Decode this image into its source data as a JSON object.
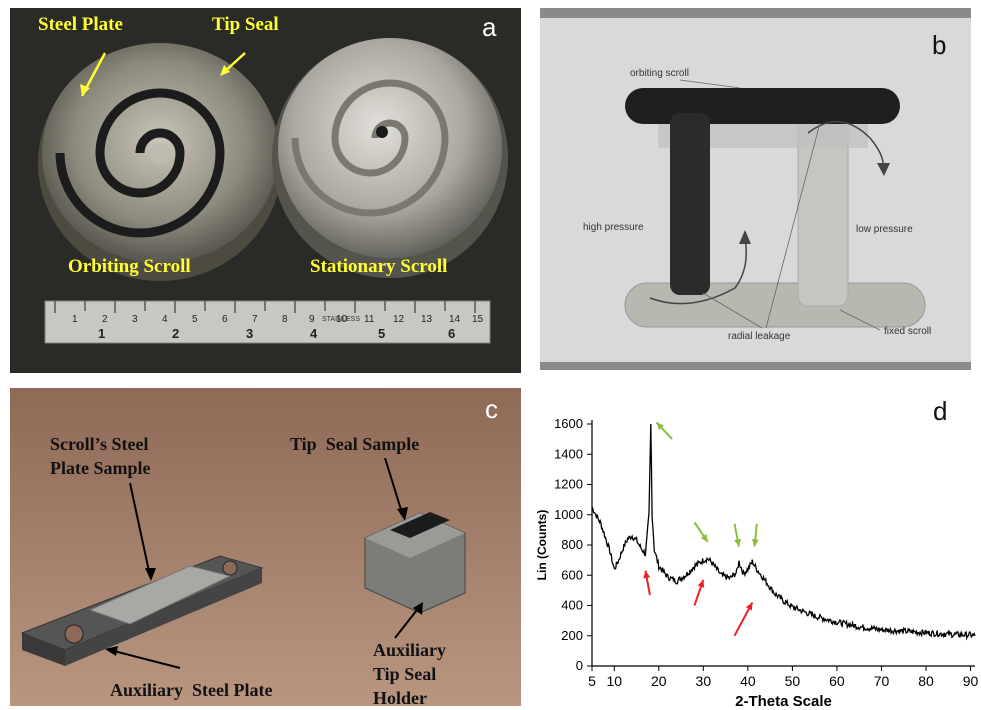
{
  "panel_a": {
    "letter": "a",
    "labels": {
      "steel_plate": "Steel Plate",
      "tip_seal": "Tip Seal",
      "orbiting_scroll": "Orbiting Scroll",
      "stationary_scroll": "Stationary Scroll"
    },
    "ruler_numbers": [
      "1",
      "2",
      "3",
      "4",
      "5",
      "6",
      "7",
      "8",
      "9",
      "10",
      "11",
      "12",
      "13",
      "14",
      "15"
    ],
    "ruler_inches": [
      "1",
      "2",
      "3",
      "4",
      "5",
      "6"
    ],
    "ruler_text": "STAINLESS",
    "label_color": "#ffff33"
  },
  "panel_b": {
    "letter": "b",
    "labels": {
      "orbiting_scroll": "orbiting scroll",
      "high_pressure": "high pressure",
      "low_pressure": "low pressure",
      "radial_leakage": "radial leakage",
      "fixed_scroll": "fixed scroll"
    }
  },
  "panel_c": {
    "letter": "c",
    "labels": {
      "steel_plate_sample_1": "Scroll’s Steel",
      "steel_plate_sample_2": "Plate Sample",
      "tip_seal_sample": "Tip  Seal Sample",
      "aux_holder_1": "Auxiliary",
      "aux_holder_2": "Tip Seal",
      "aux_holder_3": "Holder",
      "aux_steel_plate": "Auxiliary  Steel Plate"
    }
  },
  "panel_d": {
    "letter": "d",
    "chart_data": {
      "type": "line",
      "xlabel": "2-Theta Scale",
      "ylabel": "Lin (Counts)",
      "xlim": [
        5,
        91
      ],
      "ylim": [
        0,
        1600
      ],
      "x_ticks": [
        "5",
        "10",
        "20",
        "30",
        "40",
        "50",
        "60",
        "70",
        "80",
        "90"
      ],
      "y_ticks": [
        "0",
        "200",
        "400",
        "600",
        "800",
        "1000",
        "1200",
        "1400",
        "1600"
      ],
      "series": [
        {
          "x": [
            5,
            7,
            9,
            10,
            11,
            12,
            13,
            14,
            15,
            16,
            17,
            17.8,
            18.2,
            18.5,
            19,
            20,
            22,
            24,
            26,
            28,
            30,
            31,
            32,
            34,
            36,
            37.5,
            38,
            39,
            40,
            41,
            42,
            44,
            46,
            48,
            50,
            55,
            60,
            65,
            70,
            75,
            80,
            85,
            90,
            91
          ],
          "y": [
            1050,
            940,
            760,
            640,
            700,
            780,
            840,
            860,
            830,
            780,
            740,
            1000,
            1600,
            1000,
            770,
            660,
            590,
            560,
            600,
            660,
            700,
            710,
            680,
            600,
            580,
            620,
            690,
            610,
            640,
            690,
            640,
            560,
            480,
            430,
            390,
            330,
            290,
            260,
            240,
            230,
            220,
            210,
            205,
            200
          ]
        }
      ],
      "line_color": "#000000",
      "green_arrow_color": "#8bbd3c",
      "red_arrow_color": "#ee2222"
    }
  }
}
